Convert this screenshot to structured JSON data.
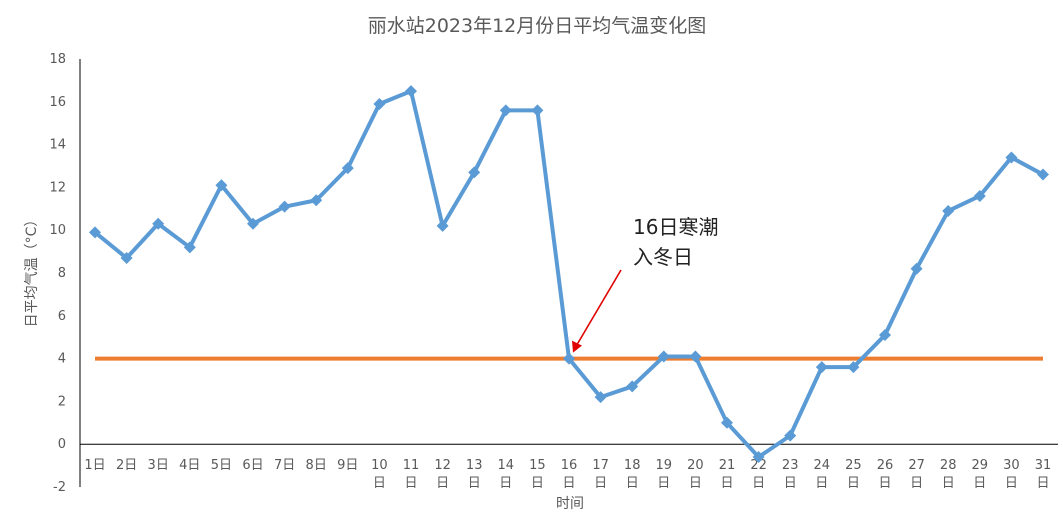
{
  "chart_data": {
    "type": "line",
    "title": "丽水站2023年12月份日平均气温变化图",
    "xlabel": "时间",
    "ylabel": "日平均气温（°C）",
    "ylim": [
      -2,
      18
    ],
    "yticks": [
      "-2",
      "0",
      "2",
      "4",
      "6",
      "8",
      "10",
      "12",
      "14",
      "16",
      "18"
    ],
    "grid": false,
    "legend": "none",
    "categories": [
      "1日",
      "2日",
      "3日",
      "4日",
      "5日",
      "6日",
      "7日",
      "8日",
      "9日",
      "10日",
      "11日",
      "12日",
      "13日",
      "14日",
      "15日",
      "16日",
      "17日",
      "18日",
      "19日",
      "20日",
      "21日",
      "22日",
      "23日",
      "24日",
      "25日",
      "26日",
      "27日",
      "28日",
      "29日",
      "30日",
      "31日"
    ],
    "series": [
      {
        "values": [
          9.9,
          8.7,
          10.3,
          9.2,
          12.1,
          10.3,
          11.1,
          11.4,
          12.9,
          15.9,
          16.5,
          10.2,
          12.7,
          15.6,
          15.6,
          4.0,
          2.2,
          2.7,
          4.1,
          4.1,
          1.0,
          -0.6,
          0.4,
          3.6,
          3.6,
          5.1,
          8.2,
          10.9,
          11.6,
          13.4,
          12.6
        ],
        "color": "#5B9BD5",
        "marker": "diamond"
      },
      {
        "values": [
          4,
          4,
          4,
          4,
          4,
          4,
          4,
          4,
          4,
          4,
          4,
          4,
          4,
          4,
          4,
          4,
          4,
          4,
          4,
          4,
          4,
          4,
          4,
          4,
          4,
          4,
          4,
          4,
          4,
          4,
          4
        ],
        "color": "#ED7D31"
      }
    ],
    "annotation": {
      "line1": "16日寒潮",
      "line2": "入冬日",
      "target_category": "16日",
      "arrow_color": "#E00000"
    }
  }
}
